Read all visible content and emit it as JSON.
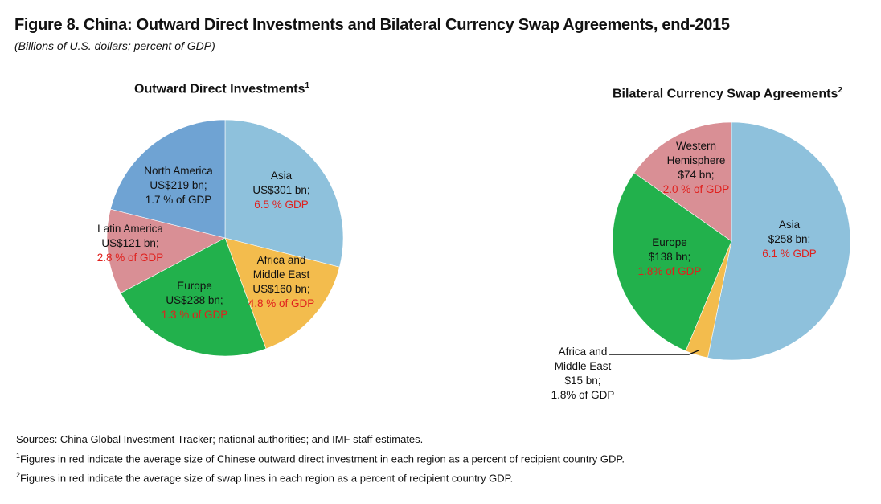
{
  "figure": {
    "title": "Figure 8. China: Outward Direct Investments and Bilateral Currency Swap Agreements, end-2015",
    "subtitle": "(Billions of U.S. dollars; percent of GDP)"
  },
  "colors": {
    "asia": "#8ec1dc",
    "africa_middle_east": "#f3bc4d",
    "europe": "#22b14c",
    "latin_america": "#d98f95",
    "north_america": "#6fa3d3",
    "western_hemisphere": "#d98f95",
    "red_text": "#e0201d"
  },
  "chart_data": [
    {
      "type": "pie",
      "title": "Outward Direct Investments",
      "title_footnote": "1",
      "slices": [
        {
          "label": "Asia",
          "value_text": "US$301 bn;",
          "pct_text": "6.5 % GDP",
          "value": 301,
          "color": "#8ec1dc"
        },
        {
          "label": "Africa and Middle East",
          "value_text": "US$160 bn;",
          "pct_text": "4.8 % of GDP",
          "value": 160,
          "color": "#f3bc4d"
        },
        {
          "label": "Europe",
          "value_text": "US$238 bn;",
          "pct_text": "1.3 % of GDP",
          "value": 238,
          "color": "#22b14c"
        },
        {
          "label": "Latin America",
          "value_text": "US$121 bn;",
          "pct_text": "2.8 % of GDP",
          "value": 121,
          "color": "#d98f95"
        },
        {
          "label": "North America",
          "value_text": "US$219 bn;",
          "pct_text": "1.7 % of GDP",
          "value": 219,
          "color": "#6fa3d3"
        }
      ]
    },
    {
      "type": "pie",
      "title": "Bilateral Currency Swap Agreements",
      "title_footnote": "2",
      "slices": [
        {
          "label": "Asia",
          "value_text": "$258 bn;",
          "pct_text": "6.1 % GDP",
          "value": 258,
          "color": "#8ec1dc"
        },
        {
          "label": "Africa and Middle East",
          "value_text": "$15 bn;",
          "pct_text": "1.8% of GDP",
          "value": 15,
          "color": "#f3bc4d"
        },
        {
          "label": "Europe",
          "value_text": "$138 bn;",
          "pct_text": "1.8% of GDP",
          "value": 138,
          "color": "#22b14c"
        },
        {
          "label": "Western Hemisphere",
          "value_text": "$74 bn;",
          "pct_text": "2.0 % of GDP",
          "value": 74,
          "color": "#d98f95"
        }
      ]
    }
  ],
  "notes": {
    "sources": "Sources: China Global Investment Tracker; national authorities; and IMF staff estimates.",
    "footnote1_mark": "1",
    "footnote1": "Figures in red indicate the average size of Chinese outward direct investment in each region as a percent of recipient country GDP.",
    "footnote2_mark": "2",
    "footnote2": "Figures in red indicate the average size of swap lines in each region as a percent of recipient country GDP."
  }
}
